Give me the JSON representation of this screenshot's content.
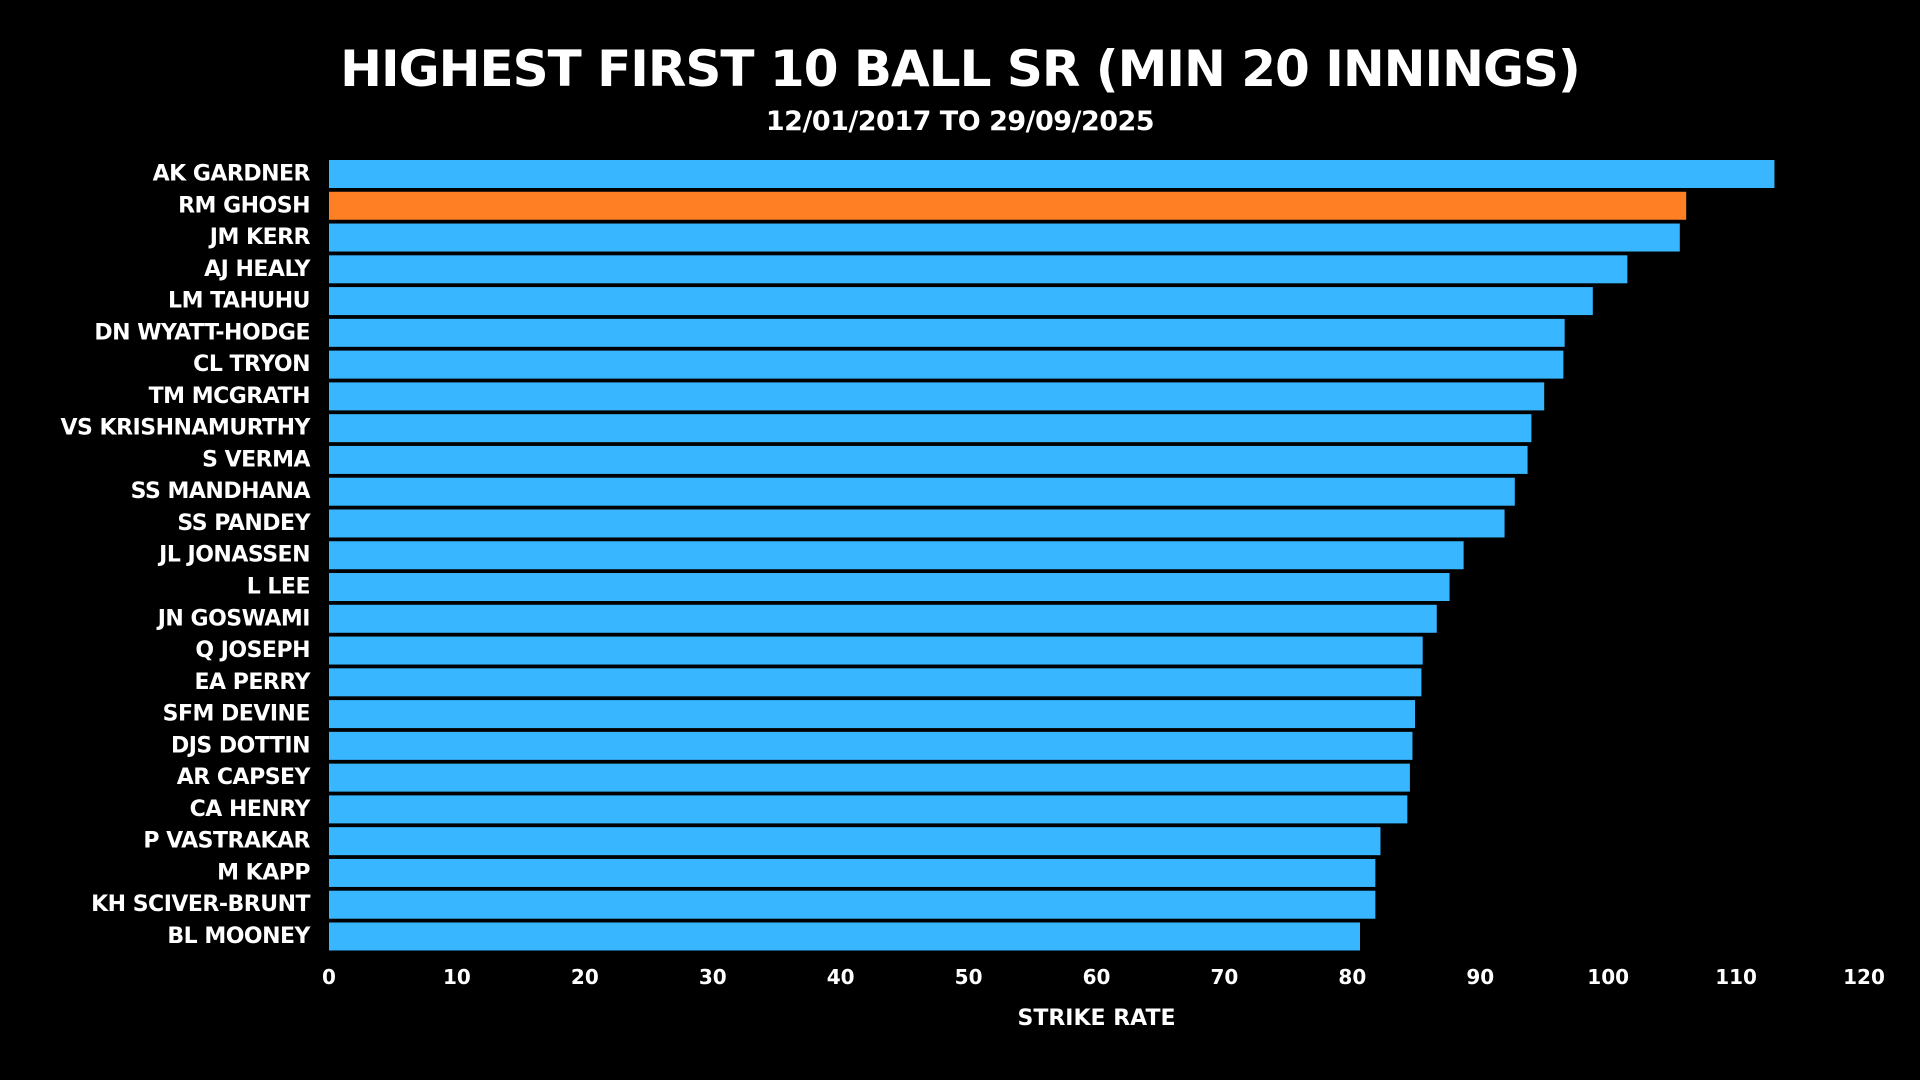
{
  "chart_data": {
    "type": "bar",
    "orientation": "horizontal",
    "title": "HIGHEST FIRST 10 BALL SR (MIN 20 INNINGS)",
    "subtitle": "12/01/2017 TO 29/09/2025",
    "xlabel": "STRIKE RATE",
    "ylabel": "",
    "xlim": [
      0,
      120
    ],
    "xticks": [
      0,
      10,
      20,
      30,
      40,
      50,
      60,
      70,
      80,
      90,
      100,
      110,
      120
    ],
    "grid": false,
    "legend": "none",
    "colors": {
      "background": "#000000",
      "bar": "#38b6ff",
      "highlight": "#ff7f24",
      "text": "#ffffff"
    },
    "highlighted": "RM GHOSH",
    "categories": [
      "AK GARDNER",
      "RM GHOSH",
      "JM KERR",
      "AJ HEALY",
      "LM TAHUHU",
      "DN WYATT-HODGE",
      "CL TRYON",
      "TM MCGRATH",
      "VS KRISHNAMURTHY",
      "S VERMA",
      "SS MANDHANA",
      "SS PANDEY",
      "JL JONASSEN",
      "L LEE",
      "JN GOSWAMI",
      "Q JOSEPH",
      "EA PERRY",
      "SFM DEVINE",
      "DJS DOTTIN",
      "AR CAPSEY",
      "CA HENRY",
      "P VASTRAKAR",
      "M KAPP",
      "KH SCIVER-BRUNT",
      "BL MOONEY"
    ],
    "values": [
      113.0,
      106.1,
      105.6,
      101.5,
      98.8,
      96.6,
      96.5,
      95.0,
      94.0,
      93.7,
      92.7,
      91.9,
      88.7,
      87.6,
      86.6,
      85.5,
      85.4,
      84.9,
      84.7,
      84.5,
      84.3,
      82.2,
      81.8,
      81.8,
      80.6
    ]
  }
}
